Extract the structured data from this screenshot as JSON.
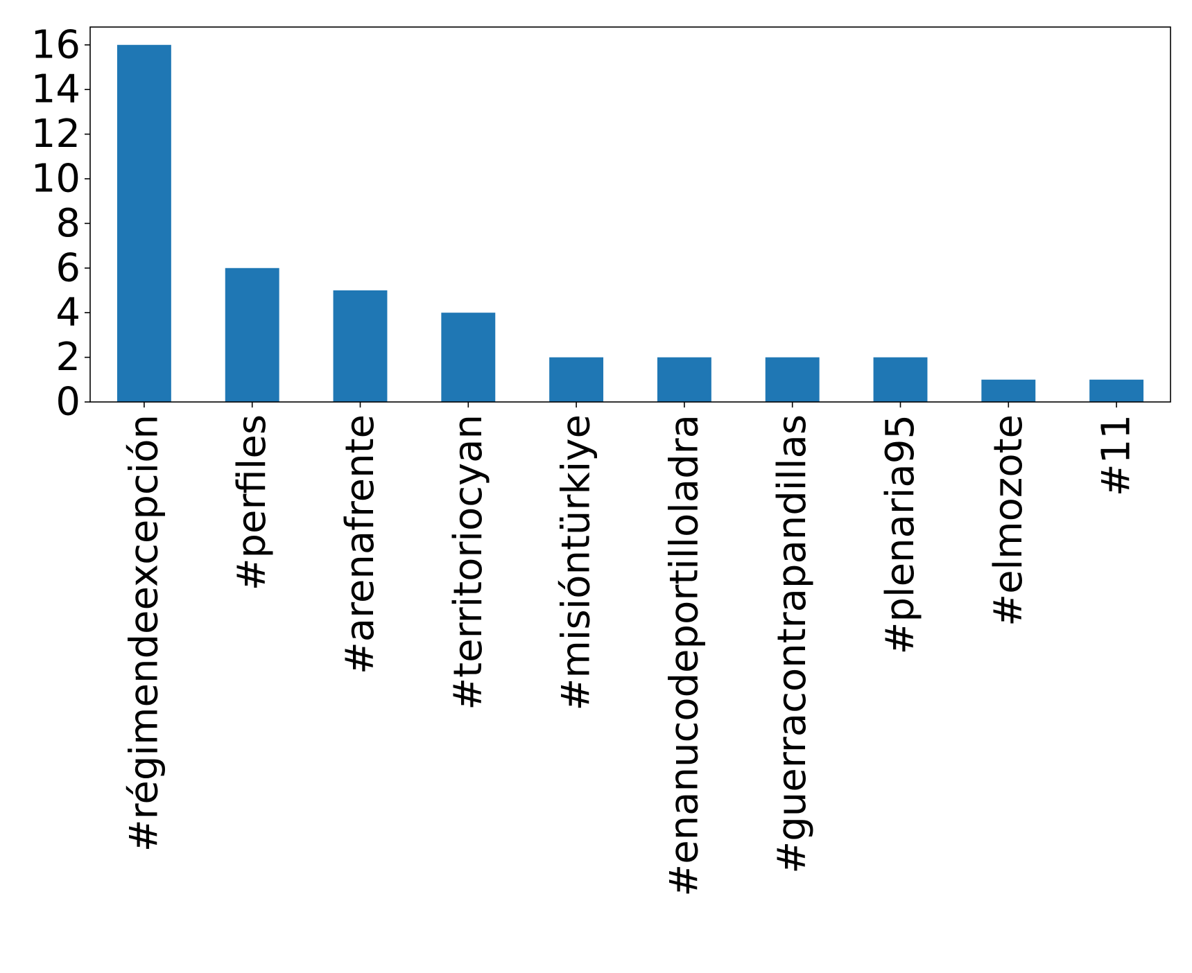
{
  "chart_data": {
    "type": "bar",
    "categories": [
      "#régimendeexcepción",
      "#perfiles",
      "#arenafrente",
      "#territoriocyan",
      "#misióntürkiye",
      "#enanucodeportilloladra",
      "#guerracontrapandillas",
      "#plenaria95",
      "#elmozote",
      "#11"
    ],
    "values": [
      16,
      6,
      5,
      4,
      2,
      2,
      2,
      2,
      1,
      1
    ],
    "title": "",
    "xlabel": "",
    "ylabel": "",
    "ylim": [
      0,
      16.8
    ],
    "yticks": [
      "0",
      "2",
      "4",
      "6",
      "8",
      "10",
      "12",
      "14",
      "16"
    ],
    "grid": false,
    "bar_color": "#1f77b4"
  }
}
